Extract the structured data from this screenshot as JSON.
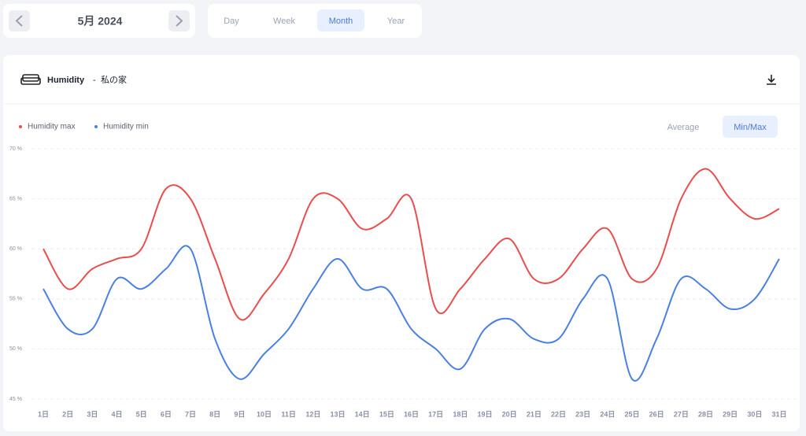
{
  "date_nav": {
    "label": "5月 2024"
  },
  "period_tabs": {
    "options": [
      "Day",
      "Week",
      "Month",
      "Year"
    ],
    "selected_index": 2
  },
  "card": {
    "title": "Humidity",
    "separator": "-",
    "location": "私の家"
  },
  "view_toggle": {
    "options": [
      "Average",
      "Min/Max"
    ],
    "selected_index": 1
  },
  "chart_data": {
    "type": "line",
    "categories": [
      "1日",
      "2日",
      "3日",
      "4日",
      "5日",
      "6日",
      "7日",
      "8日",
      "9日",
      "10日",
      "11日",
      "12日",
      "13日",
      "14日",
      "15日",
      "16日",
      "17日",
      "18日",
      "19日",
      "20日",
      "21日",
      "22日",
      "23日",
      "24日",
      "25日",
      "26日",
      "27日",
      "28日",
      "29日",
      "30日",
      "31日"
    ],
    "series": [
      {
        "name": "Humidity max",
        "color": "#ea4d4d",
        "values": [
          60,
          56,
          58,
          59,
          60,
          66,
          65,
          59,
          53,
          55.5,
          59,
          65,
          65,
          62,
          63,
          65,
          54,
          56,
          59,
          61,
          57,
          57,
          60,
          62,
          57,
          58,
          65,
          68,
          65,
          63,
          64
        ]
      },
      {
        "name": "Humidity min",
        "color": "#4a80e2",
        "values": [
          56,
          52,
          52,
          57,
          56,
          58,
          60,
          51,
          47,
          49.5,
          52,
          56,
          59,
          56,
          56,
          52,
          50,
          48,
          52,
          53,
          51,
          51,
          55,
          57,
          47,
          51,
          57,
          56,
          54,
          55,
          59
        ]
      }
    ],
    "ylim": [
      45,
      70
    ],
    "yticks": [
      {
        "value": 45,
        "label": "45 %"
      },
      {
        "value": 50,
        "label": "50 %"
      },
      {
        "value": 55,
        "label": "55 %"
      },
      {
        "value": 60,
        "label": "60 %"
      },
      {
        "value": 65,
        "label": "65 %"
      },
      {
        "value": 70,
        "label": "70 %"
      }
    ],
    "grid": true,
    "smooth": true
  }
}
